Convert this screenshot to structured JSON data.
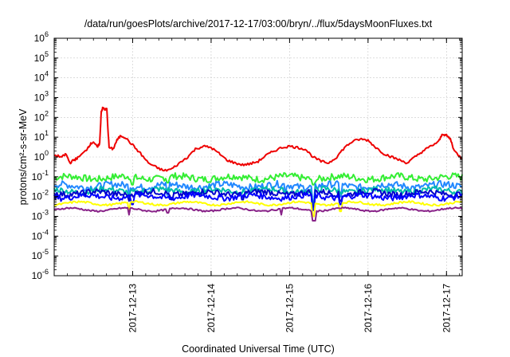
{
  "chart_data": {
    "type": "line",
    "title": "/data/run/goesPlots/archive/2017-12-17/03:00/bryn/../flux/5daysMoonFluxes.txt",
    "xlabel": "Coordinated Universal Time (UTC)",
    "ylabel": "protons/cm²-s-sr-MeV",
    "yscale": "log",
    "ylim": [
      1e-06,
      1000000.0
    ],
    "xlim_days": [
      0,
      5.2
    ],
    "y_tick_exponents": [
      -6,
      -5,
      -4,
      -3,
      -2,
      -1,
      0,
      1,
      2,
      3,
      4,
      5,
      6
    ],
    "x_ticks": [
      {
        "label": "2017-12-13",
        "day": 1.0
      },
      {
        "label": "2017-12-14",
        "day": 2.0
      },
      {
        "label": "2017-12-15",
        "day": 3.0
      },
      {
        "label": "2017-12-16",
        "day": 4.0
      },
      {
        "label": "2017-12-17",
        "day": 5.0
      }
    ],
    "grid": true,
    "legend": "none",
    "series": [
      {
        "color": "#ee0000",
        "kind": "anchors",
        "points": [
          [
            0,
            1.2
          ],
          [
            0.1,
            1.0
          ],
          [
            0.15,
            1.4
          ],
          [
            0.2,
            0.5
          ],
          [
            0.25,
            0.7
          ],
          [
            0.3,
            0.9
          ],
          [
            0.4,
            2
          ],
          [
            0.45,
            4
          ],
          [
            0.5,
            6
          ],
          [
            0.55,
            3
          ],
          [
            0.58,
            5
          ],
          [
            0.6,
            200
          ],
          [
            0.62,
            300
          ],
          [
            0.65,
            250
          ],
          [
            0.67,
            260
          ],
          [
            0.7,
            3
          ],
          [
            0.75,
            2.5
          ],
          [
            0.8,
            7
          ],
          [
            0.85,
            12
          ],
          [
            0.9,
            10
          ],
          [
            1.0,
            4
          ],
          [
            1.1,
            1.5
          ],
          [
            1.2,
            0.5
          ],
          [
            1.3,
            0.3
          ],
          [
            1.4,
            0.2
          ],
          [
            1.5,
            0.25
          ],
          [
            1.6,
            0.5
          ],
          [
            1.7,
            1.0
          ],
          [
            1.8,
            2.5
          ],
          [
            1.9,
            3.5
          ],
          [
            2.0,
            3
          ],
          [
            2.1,
            1.5
          ],
          [
            2.2,
            0.7
          ],
          [
            2.3,
            0.5
          ],
          [
            2.4,
            0.4
          ],
          [
            2.5,
            0.45
          ],
          [
            2.6,
            0.6
          ],
          [
            2.7,
            1.2
          ],
          [
            2.8,
            2.0
          ],
          [
            2.9,
            3.0
          ],
          [
            3.0,
            3.5
          ],
          [
            3.1,
            3.0
          ],
          [
            3.2,
            2.5
          ],
          [
            3.3,
            1.0
          ],
          [
            3.4,
            0.6
          ],
          [
            3.5,
            0.5
          ],
          [
            3.6,
            1.0
          ],
          [
            3.7,
            3.0
          ],
          [
            3.8,
            6.0
          ],
          [
            3.9,
            8.0
          ],
          [
            4.0,
            7.0
          ],
          [
            4.1,
            3.0
          ],
          [
            4.2,
            1.5
          ],
          [
            4.3,
            1.0
          ],
          [
            4.4,
            0.7
          ],
          [
            4.5,
            0.5
          ],
          [
            4.6,
            1.0
          ],
          [
            4.7,
            2.0
          ],
          [
            4.8,
            3.5
          ],
          [
            4.9,
            6.0
          ],
          [
            4.95,
            15
          ],
          [
            5.0,
            12
          ],
          [
            5.05,
            8
          ],
          [
            5.1,
            2.0
          ],
          [
            5.2,
            0.8
          ]
        ]
      },
      {
        "color": "#33ee33",
        "kind": "noisy",
        "base": 0.09,
        "amp": 0.35,
        "dips": [
          [
            1.0,
            0.04
          ],
          [
            1.45,
            0.05
          ],
          [
            3.3,
            0.04
          ]
        ]
      },
      {
        "color": "#2288ff",
        "kind": "noisy",
        "base": 0.035,
        "amp": 0.35,
        "dips": [
          [
            0.95,
            0.01
          ],
          [
            1.45,
            0.012
          ],
          [
            2.95,
            0.012
          ],
          [
            3.3,
            0.005
          ],
          [
            3.65,
            0.01
          ]
        ]
      },
      {
        "color": "#00bbaa",
        "kind": "noisy",
        "base": 0.02,
        "amp": 0.3,
        "dips": [
          [
            0.95,
            0.008
          ],
          [
            3.3,
            0.004
          ]
        ]
      },
      {
        "color": "#0000cc",
        "kind": "noisy",
        "base": 0.015,
        "amp": 0.3,
        "dips": [
          [
            0.95,
            0.006
          ],
          [
            1.5,
            0.007
          ],
          [
            2.4,
            0.007
          ],
          [
            3.3,
            0.003
          ],
          [
            3.65,
            0.006
          ]
        ]
      },
      {
        "color": "#0000ff",
        "kind": "noisy",
        "base": 0.01,
        "amp": 0.3,
        "dips": [
          [
            1.0,
            0.004
          ],
          [
            3.3,
            0.002
          ],
          [
            3.65,
            0.004
          ]
        ]
      },
      {
        "color": "#ffff00",
        "kind": "noisy",
        "base": 0.0045,
        "amp": 0.1,
        "dips": [
          [
            0.95,
            0.0015
          ],
          [
            3.3,
            0.001
          ],
          [
            3.65,
            0.0018
          ]
        ]
      },
      {
        "color": "#882288",
        "kind": "noisy",
        "base": 0.0022,
        "amp": 0.08,
        "dips": [
          [
            0.95,
            0.0012
          ],
          [
            1.45,
            0.0015
          ],
          [
            2.9,
            0.0012
          ],
          [
            3.3,
            0.0006
          ],
          [
            3.32,
            0.0006
          ]
        ]
      }
    ]
  }
}
